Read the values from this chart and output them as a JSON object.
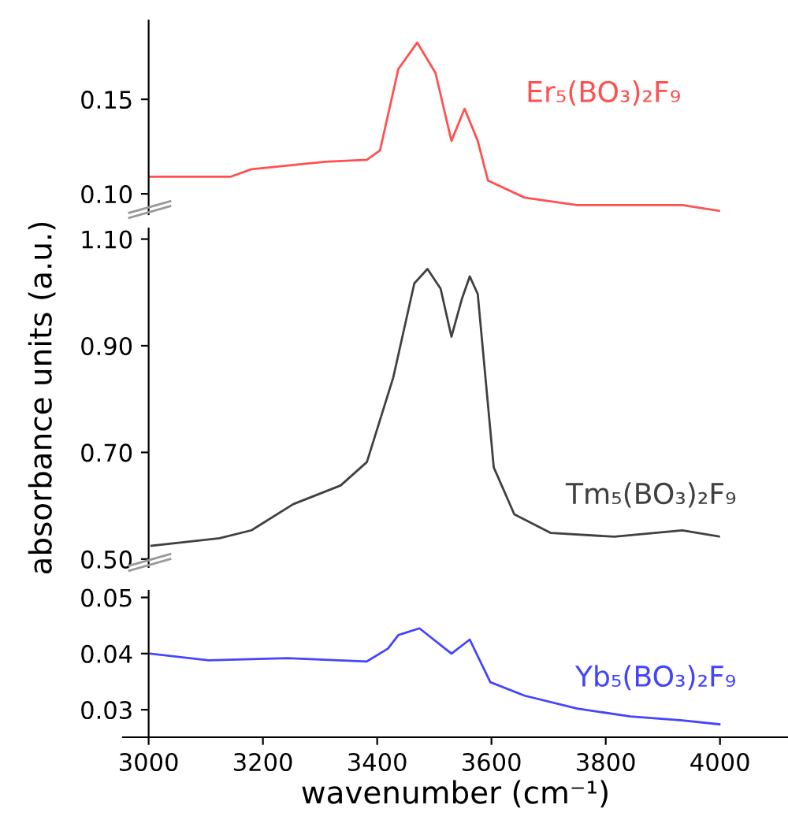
{
  "chart_data": [
    {
      "type": "line",
      "xlim": [
        3000,
        4000
      ],
      "xticks": [
        3000,
        3200,
        3400,
        3600,
        3800,
        4000
      ],
      "ylim": [
        0.0892,
        0.1917
      ],
      "yticks": [
        {
          "value": 0.1,
          "label": "0.10"
        },
        0.15
      ],
      "tick_labels": "y",
      "series": [
        {
          "name": "Er₅(BO₃)₂F₉",
          "color": "#ff5050",
          "x": [
            3002,
            3143,
            3180,
            3309,
            3382,
            3405,
            3437,
            3470,
            3502,
            3530,
            3553,
            3576,
            3594,
            3658,
            3750,
            3934,
            3999
          ],
          "values": [
            0.109,
            0.109,
            0.113,
            0.117,
            0.118,
            0.123,
            0.166,
            0.18,
            0.164,
            0.128,
            0.145,
            0.128,
            0.107,
            0.098,
            0.094,
            0.094,
            0.091
          ]
        }
      ]
    },
    {
      "type": "line",
      "xlim": [
        3000,
        4000
      ],
      "xticks": [
        3000,
        3200,
        3400,
        3600,
        3800,
        4000
      ],
      "ylim": [
        0.485,
        1.12
      ],
      "yticks": [
        {
          "value": 0.5,
          "label": "0.50"
        },
        {
          "value": 0.7,
          "label": "0.70"
        },
        {
          "value": 0.9,
          "label": "0.90"
        },
        {
          "value": 1.1,
          "label": "1.10"
        }
      ],
      "tick_labels": "y",
      "ylabel": "absorbance units (a.u.)",
      "series": [
        {
          "name": "Tm₅(BO₃)₂F₉",
          "color": "#404040",
          "x": [
            3005,
            3124,
            3180,
            3253,
            3336,
            3382,
            3428,
            3465,
            3488,
            3511,
            3530,
            3548,
            3562,
            3576,
            3604,
            3640,
            3704,
            3815,
            3934,
            4000
          ],
          "values": [
            0.525,
            0.539,
            0.554,
            0.603,
            0.638,
            0.682,
            0.84,
            1.017,
            1.044,
            1.007,
            0.917,
            0.987,
            1.03,
            0.997,
            0.672,
            0.584,
            0.549,
            0.542,
            0.554,
            0.542
          ]
        }
      ]
    },
    {
      "type": "line",
      "xlim": [
        2955,
        4119
      ],
      "ylim": [
        0.0251,
        0.0512
      ],
      "xticks": [
        3000,
        3200,
        3400,
        3600,
        3800,
        4000
      ],
      "yticks": [
        0.03,
        0.04,
        0.05
      ],
      "xlabel": "wavenumber (cm⁻¹)",
      "series": [
        {
          "name": "Yb₅(BO₃)₂F₉",
          "color": "#4444ff",
          "x": [
            3002,
            3105,
            3243,
            3382,
            3419,
            3437,
            3474,
            3530,
            3562,
            3598,
            3658,
            3750,
            3843,
            3934,
            3999
          ],
          "values": [
            0.04,
            0.0388,
            0.0392,
            0.0386,
            0.0409,
            0.0433,
            0.0445,
            0.04,
            0.0425,
            0.0349,
            0.0325,
            0.0302,
            0.0288,
            0.0281,
            0.0274
          ]
        }
      ]
    }
  ]
}
